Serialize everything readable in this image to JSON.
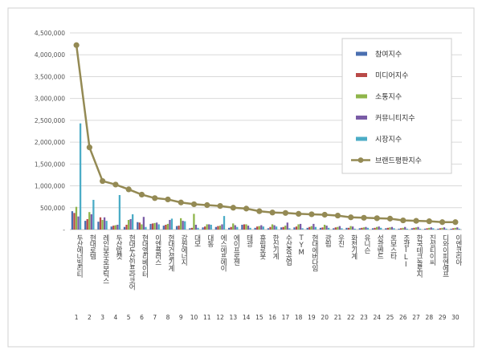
{
  "chart_data": {
    "type": "bar",
    "title": "",
    "xlabel": "",
    "ylabel": "",
    "ylim": [
      0,
      4500000
    ],
    "yticks": [
      0,
      500000,
      1000000,
      1500000,
      2000000,
      2500000,
      3000000,
      3500000,
      4000000,
      4500000
    ],
    "ytick_labels": [
      "-",
      "500,000",
      "1,000,000",
      "1,500,000",
      "2,000,000",
      "2,500,000",
      "3,000,000",
      "3,500,000",
      "4,000,000",
      "4,500,000"
    ],
    "grid": true,
    "legend_position": "right",
    "categories": [
      "두산에너빌리티",
      "현대로템",
      "레인보우로보틱스",
      "두산밥캣",
      "현대두산인프라코어",
      "현대엘리베이터",
      "이엔플러스",
      "현대건설기계",
      "강원에너지",
      "대모",
      "대동",
      "에스에프에이",
      "에이프로젠",
      "태광",
      "휴림로봇",
      "한신기계",
      "수산중공업",
      "TYM",
      "현대에버다임",
      "광림",
      "우진",
      "화천기계",
      "유니슨",
      "성광벤드",
      "로보스타",
      "조광ILI",
      "한국테크놀로지",
      "진성티이씨",
      "디와이피엔에프",
      "이엔코리아"
    ],
    "ranks": [
      "1",
      "2",
      "3",
      "4",
      "5",
      "6",
      "7",
      "8",
      "9",
      "10",
      "11",
      "12",
      "13",
      "14",
      "15",
      "16",
      "17",
      "18",
      "19",
      "20",
      "21",
      "22",
      "23",
      "24",
      "25",
      "26",
      "27",
      "28",
      "29",
      "30"
    ],
    "series": [
      {
        "name": "참여지수",
        "type": "bar",
        "color": "#4a6fb0",
        "values": [
          420000,
          200000,
          180000,
          70000,
          60000,
          170000,
          130000,
          90000,
          80000,
          30000,
          50000,
          60000,
          40000,
          110000,
          40000,
          30000,
          50000,
          50000,
          40000,
          40000,
          30000,
          40000,
          30000,
          30000,
          30000,
          20000,
          30000,
          20000,
          20000,
          20000
        ]
      },
      {
        "name": "미디어지수",
        "type": "bar",
        "color": "#b94a48",
        "values": [
          380000,
          240000,
          280000,
          90000,
          110000,
          160000,
          140000,
          110000,
          90000,
          40000,
          70000,
          80000,
          60000,
          120000,
          70000,
          60000,
          60000,
          70000,
          60000,
          50000,
          50000,
          40000,
          40000,
          40000,
          40000,
          30000,
          40000,
          30000,
          30000,
          30000
        ]
      },
      {
        "name": "소통지수",
        "type": "bar",
        "color": "#8fb54a",
        "values": [
          520000,
          400000,
          220000,
          100000,
          220000,
          120000,
          150000,
          130000,
          260000,
          360000,
          120000,
          90000,
          140000,
          120000,
          80000,
          120000,
          90000,
          120000,
          80000,
          110000,
          60000,
          80000,
          50000,
          60000,
          50000,
          40000,
          50000,
          40000,
          40000,
          40000
        ]
      },
      {
        "name": "커뮤니티지수",
        "type": "bar",
        "color": "#7a5ca6",
        "values": [
          300000,
          350000,
          280000,
          110000,
          240000,
          290000,
          160000,
          220000,
          200000,
          110000,
          120000,
          120000,
          100000,
          90000,
          100000,
          100000,
          160000,
          130000,
          130000,
          90000,
          80000,
          70000,
          60000,
          70000,
          60000,
          60000,
          60000,
          50000,
          50000,
          50000
        ]
      },
      {
        "name": "시장지수",
        "type": "bar",
        "color": "#4bacc6",
        "values": [
          2430000,
          680000,
          200000,
          790000,
          350000,
          60000,
          120000,
          250000,
          190000,
          40000,
          110000,
          310000,
          60000,
          40000,
          70000,
          70000,
          30000,
          30000,
          60000,
          40000,
          30000,
          20000,
          40000,
          40000,
          30000,
          20000,
          20000,
          30000,
          20000,
          20000
        ]
      },
      {
        "name": "브랜드평판지수",
        "type": "line",
        "color": "#948a54",
        "values": [
          4220000,
          1880000,
          1110000,
          1030000,
          920000,
          800000,
          720000,
          690000,
          620000,
          580000,
          560000,
          540000,
          500000,
          480000,
          420000,
          390000,
          380000,
          360000,
          350000,
          340000,
          320000,
          280000,
          270000,
          260000,
          250000,
          210000,
          200000,
          190000,
          170000,
          170000
        ]
      }
    ]
  }
}
